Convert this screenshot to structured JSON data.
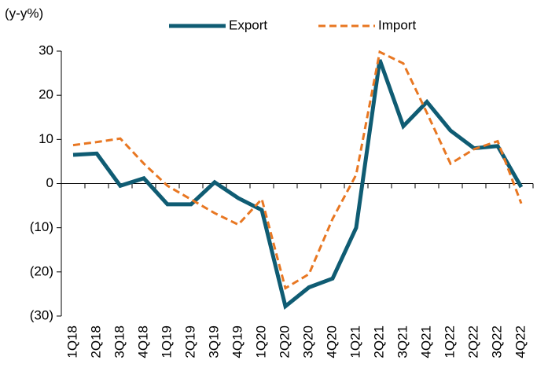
{
  "chart_data": {
    "type": "line",
    "y_label": "(y-y%)",
    "categories": [
      "1Q18",
      "2Q18",
      "3Q18",
      "4Q18",
      "1Q19",
      "2Q19",
      "3Q19",
      "4Q19",
      "1Q20",
      "2Q20",
      "3Q20",
      "4Q20",
      "1Q21",
      "2Q21",
      "3Q21",
      "4Q21",
      "1Q22",
      "2Q22",
      "3Q22",
      "4Q22"
    ],
    "series": [
      {
        "name": "Export",
        "color": "#0f5c73",
        "style": "solid",
        "values": [
          6.5,
          6.8,
          -0.5,
          1.2,
          -4.7,
          -4.7,
          0.3,
          -3.3,
          -6,
          -27.8,
          -23.5,
          -21.5,
          -10,
          28,
          13,
          18.5,
          12,
          8,
          8.5,
          -0.8
        ]
      },
      {
        "name": "Import",
        "color": "#e87722",
        "style": "dashed",
        "values": [
          8.7,
          9.4,
          10.2,
          4.5,
          -0.5,
          -3.6,
          -6.7,
          -9.3,
          -3.5,
          -23.7,
          -20.5,
          -8,
          2,
          29.8,
          27.2,
          16,
          4.5,
          7.8,
          9.6,
          -4.5
        ]
      }
    ],
    "ylim": [
      -30,
      30
    ],
    "yticks": [
      {
        "value": -30,
        "label": "(30)"
      },
      {
        "value": -20,
        "label": "(20)"
      },
      {
        "value": -10,
        "label": "(10)"
      },
      0,
      10,
      20,
      30
    ],
    "grid": false,
    "legend": "top"
  }
}
